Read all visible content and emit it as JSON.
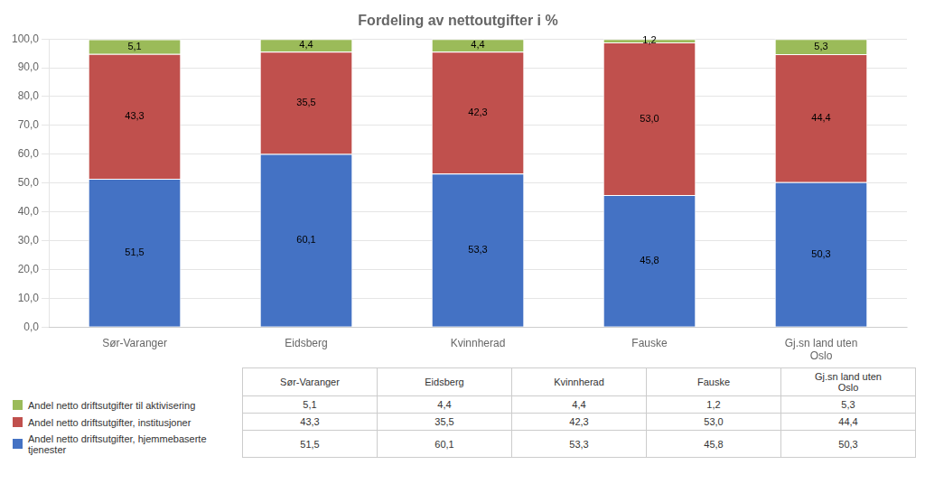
{
  "chart_data": {
    "type": "bar",
    "title": "Fordeling av nettoutgifter i %",
    "categories": [
      "Sør-Varanger",
      "Eidsberg",
      "Kvinnherad",
      "Fauske",
      "Gj.sn land uten\nOslo"
    ],
    "series": [
      {
        "name": "Andel netto driftsutgifter, hjemmebaserte\ntjenester",
        "color": "#4472C4",
        "values": [
          51.5,
          60.1,
          53.3,
          45.8,
          50.3
        ],
        "value_labels": [
          "51,5",
          "60,1",
          "53,3",
          "45,8",
          "50,3"
        ]
      },
      {
        "name": "Andel netto driftsutgifter, institusjoner",
        "color": "#C0504D",
        "values": [
          43.3,
          35.5,
          42.3,
          53.0,
          44.4
        ],
        "value_labels": [
          "43,3",
          "35,5",
          "42,3",
          "53,0",
          "44,4"
        ]
      },
      {
        "name": "Andel netto driftsutgifter til aktivisering",
        "color": "#9BBB59",
        "values": [
          5.1,
          4.4,
          4.4,
          1.2,
          5.3
        ],
        "value_labels": [
          "5,1",
          "4,4",
          "4,4",
          "1,2",
          "5,3"
        ]
      }
    ],
    "ylim": [
      0,
      100
    ],
    "yticks": [
      {
        "value": 0,
        "label": "0,0"
      },
      {
        "value": 10,
        "label": "10,0"
      },
      {
        "value": 20,
        "label": "20,0"
      },
      {
        "value": 30,
        "label": "30,0"
      },
      {
        "value": 40,
        "label": "40,0"
      },
      {
        "value": 50,
        "label": "50,0"
      },
      {
        "value": 60,
        "label": "60,0"
      },
      {
        "value": 70,
        "label": "70,0"
      },
      {
        "value": 80,
        "label": "80,0"
      },
      {
        "value": 90,
        "label": "90,0"
      },
      {
        "value": 100,
        "label": "100,0"
      }
    ],
    "grid": true,
    "stacked": true,
    "data_labels": true,
    "legend": "bottom"
  }
}
